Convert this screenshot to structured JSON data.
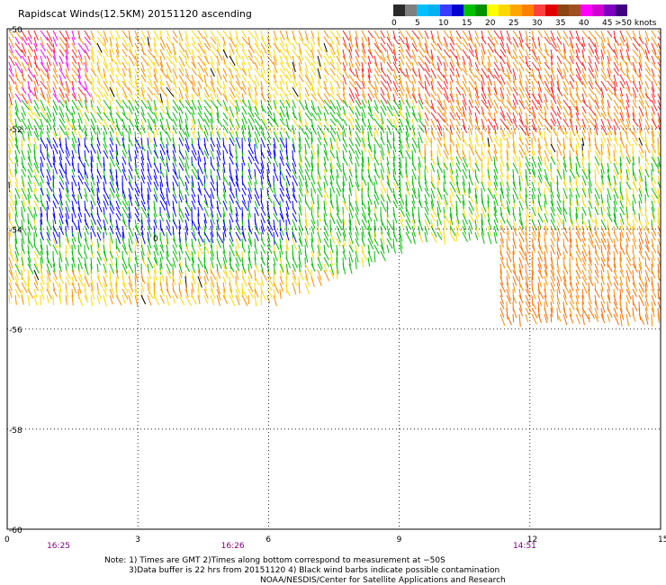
{
  "title": "Rapidscat Winds(12.5KM) 20151120 ascending",
  "legend": {
    "unit_label": ">50 knots",
    "labels": [
      "0",
      "5",
      "10",
      "15",
      "20",
      "25",
      "30",
      "35",
      "40",
      "45"
    ],
    "colors": [
      "#2a2a2a",
      "#7f7f7f",
      "#00bfff",
      "#00b2ee",
      "#3b3bff",
      "#0000d0",
      "#00c000",
      "#009000",
      "#ffff00",
      "#ffd700",
      "#ffa500",
      "#ff8000",
      "#ff4040",
      "#e00000",
      "#8b4513",
      "#a05020",
      "#ff00ff",
      "#d000d0",
      "#8000c0",
      "#400080"
    ]
  },
  "map": {
    "lat_labels": [
      "-50",
      "-52",
      "-54",
      "-56",
      "-58",
      "-60"
    ],
    "lon_labels": [
      "0",
      "3",
      "6",
      "9",
      "12",
      "15"
    ],
    "lat_range": [
      -60,
      -50
    ],
    "lon_range": [
      0,
      15
    ],
    "time_labels": [
      {
        "text": "16:25",
        "lon": 1.2
      },
      {
        "text": "16:26",
        "lon": 5.2
      },
      {
        "text": "14:51",
        "lon": 11.9
      }
    ],
    "contour_label": "0",
    "wind_regions": [
      {
        "speed": "25-35 kt",
        "color": "#ff8c00"
      },
      {
        "speed": "20-25 kt",
        "color": "#ffd700"
      },
      {
        "speed": "15-20 kt",
        "color": "#00c000"
      },
      {
        "speed": "10-15 kt",
        "color": "#0000ff"
      },
      {
        "speed": "35-45 kt",
        "color": "#ff00ff"
      },
      {
        "speed": "30-35 kt",
        "color": "#ff2020"
      },
      {
        "speed": "contaminated",
        "color": "#000000"
      }
    ]
  },
  "notes": {
    "line1": "Note: 1) Times are GMT 2)Times along bottom correspond to measurement at −50S",
    "line2": "3)Data buffer is 22 hrs from 20151120 4) Black wind barbs indicate possible contamination",
    "line3": "NOAA/NESDIS/Center for Satellite Applications and Research"
  }
}
